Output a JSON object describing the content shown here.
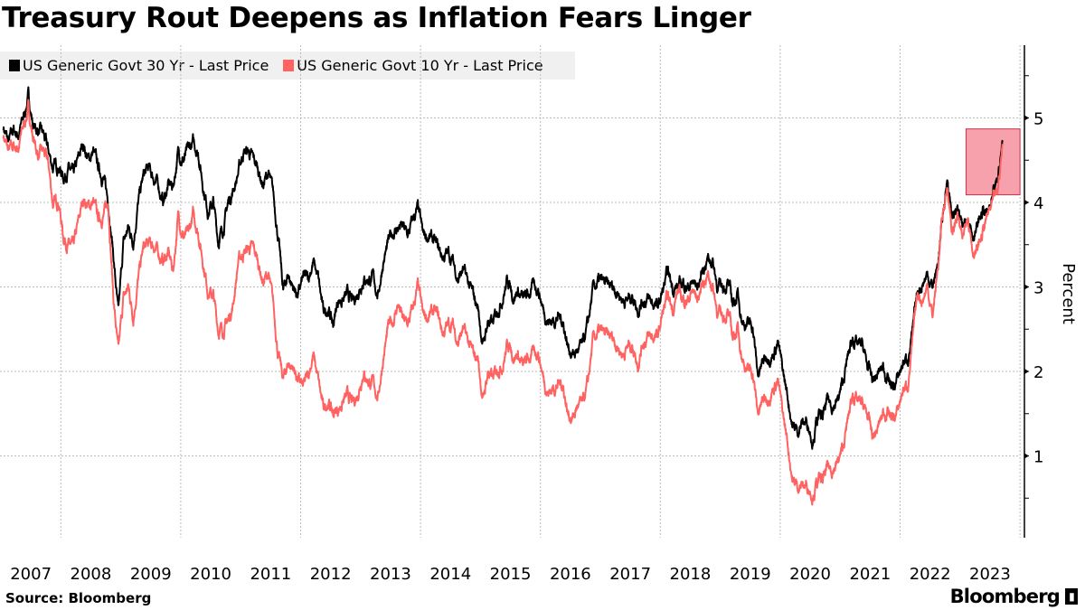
{
  "title": "Treasury Rout Deepens as Inflation Fears Linger",
  "source": "Source: Bloomberg",
  "logo": "Bloomberg",
  "chart_data": {
    "type": "line",
    "title": "Treasury Rout Deepens as Inflation Fears Linger",
    "xlabel": "",
    "ylabel": "Percent",
    "ylim": [
      0.03,
      5.86
    ],
    "xlim": [
      2007.0,
      2024.1
    ],
    "y_axis_side": "right",
    "yticks": [
      1,
      2,
      3,
      4,
      5
    ],
    "xtick_labels": [
      "2007",
      "2008",
      "2009",
      "2010",
      "2011",
      "2012",
      "2013",
      "2014",
      "2015",
      "2016",
      "2017",
      "2018",
      "2019",
      "2020",
      "2021",
      "2022",
      "2023"
    ],
    "grid": true,
    "legend_placement": "top-left",
    "x_frequency": "monthly, starting January 2007",
    "highlight_box": {
      "x": [
        2023.1,
        2024.0
      ],
      "y": [
        4.09,
        4.87
      ],
      "color": "#f7a1ad"
    },
    "series": [
      {
        "name": "US Generic Govt 30 Yr - Last Price",
        "color": "#000000",
        "values": [
          4.9,
          4.7,
          4.85,
          4.8,
          5.0,
          5.25,
          4.9,
          4.85,
          4.8,
          4.6,
          4.4,
          4.45,
          4.3,
          4.4,
          4.3,
          4.5,
          4.7,
          4.5,
          4.6,
          4.4,
          4.3,
          4.0,
          3.4,
          2.65,
          3.5,
          3.7,
          3.55,
          4.0,
          4.3,
          4.4,
          4.3,
          4.2,
          4.0,
          4.2,
          4.2,
          4.6,
          4.5,
          4.6,
          4.7,
          4.6,
          4.2,
          3.9,
          4.0,
          3.55,
          3.7,
          4.0,
          4.15,
          4.35,
          4.6,
          4.6,
          4.5,
          4.4,
          4.2,
          4.35,
          4.1,
          3.6,
          2.95,
          3.15,
          3.0,
          2.9,
          3.1,
          3.1,
          3.3,
          3.1,
          2.7,
          2.75,
          2.55,
          2.85,
          2.85,
          2.9,
          2.8,
          2.95,
          3.1,
          3.1,
          3.1,
          2.9,
          3.3,
          3.5,
          3.65,
          3.7,
          3.7,
          3.6,
          3.8,
          3.92,
          3.6,
          3.6,
          3.55,
          3.45,
          3.35,
          3.4,
          3.3,
          3.1,
          3.2,
          3.05,
          2.9,
          2.75,
          2.3,
          2.6,
          2.55,
          2.75,
          2.9,
          3.1,
          2.9,
          2.95,
          2.85,
          2.9,
          3.0,
          3.0,
          2.75,
          2.6,
          2.6,
          2.65,
          2.6,
          2.3,
          2.2,
          2.25,
          2.3,
          2.55,
          2.95,
          3.05,
          3.05,
          3.0,
          3.0,
          2.95,
          2.85,
          2.85,
          2.9,
          2.75,
          2.85,
          2.85,
          2.8,
          2.75,
          2.95,
          3.15,
          3.0,
          3.0,
          3.05,
          3.0,
          3.05,
          3.0,
          3.2,
          3.35,
          3.3,
          3.0,
          3.0,
          3.05,
          2.8,
          2.9,
          2.6,
          2.55,
          2.55,
          1.95,
          2.1,
          2.2,
          2.2,
          2.35,
          2.0,
          1.7,
          1.35,
          1.3,
          1.4,
          1.4,
          1.2,
          1.45,
          1.45,
          1.65,
          1.6,
          1.65,
          1.85,
          2.15,
          2.4,
          2.3,
          2.3,
          2.05,
          1.9,
          1.95,
          2.05,
          1.95,
          1.8,
          1.9,
          2.1,
          2.15,
          2.45,
          2.95,
          3.05,
          3.15,
          3.0,
          3.25,
          3.8,
          4.3,
          3.8,
          3.95,
          3.65,
          3.9,
          3.65,
          3.7,
          3.9,
          3.85,
          4.0,
          4.25,
          4.72
        ]
      },
      {
        "name": "US Generic Govt 10 Yr - Last Price",
        "color": "#ff6361",
        "values": [
          4.8,
          4.6,
          4.65,
          4.65,
          4.9,
          5.1,
          4.75,
          4.55,
          4.6,
          4.45,
          3.95,
          4.05,
          3.6,
          3.5,
          3.45,
          3.75,
          4.05,
          3.95,
          4.0,
          3.8,
          3.85,
          4.0,
          2.9,
          2.2,
          2.85,
          3.0,
          2.65,
          3.1,
          3.45,
          3.5,
          3.5,
          3.4,
          3.3,
          3.4,
          3.2,
          3.85,
          3.6,
          3.6,
          3.85,
          3.65,
          3.3,
          2.95,
          2.9,
          2.5,
          2.5,
          2.6,
          2.8,
          3.3,
          3.4,
          3.45,
          3.45,
          3.3,
          3.05,
          3.15,
          2.8,
          2.2,
          1.9,
          2.1,
          2.05,
          1.9,
          1.8,
          1.95,
          2.2,
          1.9,
          1.55,
          1.65,
          1.5,
          1.55,
          1.65,
          1.7,
          1.6,
          1.75,
          2.0,
          1.9,
          1.85,
          1.7,
          2.15,
          2.5,
          2.6,
          2.8,
          2.6,
          2.55,
          2.75,
          3.0,
          2.65,
          2.65,
          2.7,
          2.65,
          2.45,
          2.55,
          2.55,
          2.35,
          2.5,
          2.35,
          2.2,
          2.15,
          1.65,
          2.0,
          1.9,
          2.05,
          2.1,
          2.35,
          2.2,
          2.2,
          2.05,
          2.15,
          2.2,
          2.25,
          1.95,
          1.75,
          1.8,
          1.85,
          1.85,
          1.5,
          1.45,
          1.6,
          1.6,
          1.85,
          2.35,
          2.45,
          2.45,
          2.4,
          2.4,
          2.3,
          2.2,
          2.3,
          2.3,
          2.1,
          2.35,
          2.4,
          2.4,
          2.4,
          2.7,
          2.85,
          2.75,
          2.95,
          2.85,
          2.85,
          2.95,
          2.85,
          3.05,
          3.15,
          3.0,
          2.7,
          2.65,
          2.7,
          2.4,
          2.5,
          2.15,
          2.0,
          2.0,
          1.5,
          1.65,
          1.7,
          1.8,
          1.9,
          1.5,
          1.15,
          0.7,
          0.65,
          0.65,
          0.65,
          0.55,
          0.7,
          0.7,
          0.85,
          0.85,
          0.92,
          1.07,
          1.4,
          1.74,
          1.63,
          1.6,
          1.47,
          1.22,
          1.31,
          1.49,
          1.55,
          1.44,
          1.51,
          1.78,
          1.83,
          2.34,
          2.93,
          2.85,
          3.01,
          2.65,
          3.19,
          3.83,
          4.2,
          3.61,
          3.87,
          3.51,
          3.92,
          3.47,
          3.42,
          3.64,
          3.84,
          3.96,
          4.11,
          4.68
        ]
      }
    ]
  }
}
